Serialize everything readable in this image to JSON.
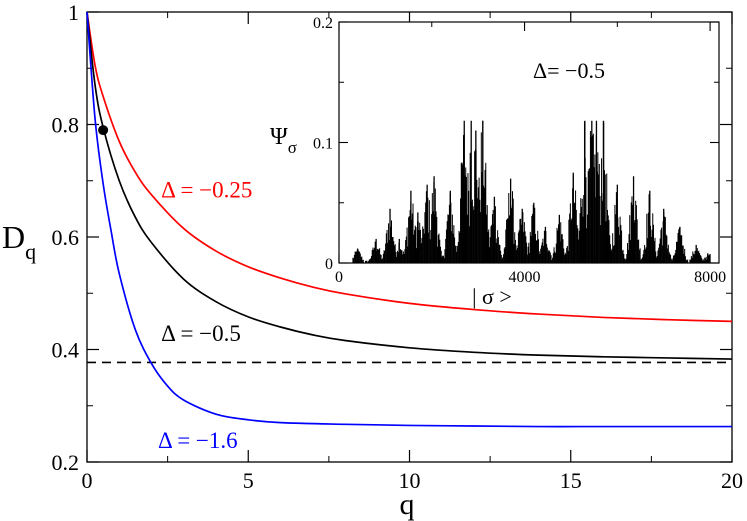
{
  "chart_data": [
    {
      "type": "line",
      "title": "",
      "xlabel": "q",
      "ylabel_main": "D",
      "ylabel_sub": "q",
      "xlim": [
        0,
        20
      ],
      "ylim": [
        0.2,
        1.0
      ],
      "xticks": [
        0,
        5,
        10,
        15,
        20
      ],
      "xtick_labels": [
        "0",
        "5",
        "10",
        "15",
        "20"
      ],
      "yticks": [
        0.2,
        0.4,
        0.6,
        0.8,
        1.0
      ],
      "ytick_labels": [
        "0.2",
        "0.4",
        "0.6",
        "0.8",
        "1"
      ],
      "series": [
        {
          "name": "Δ = −0.25",
          "color": "#ff0000",
          "x": [
            0,
            0.25,
            0.5,
            1,
            1.5,
            2,
            3,
            4,
            5,
            6,
            7,
            8,
            10,
            12,
            14,
            16,
            18,
            20
          ],
          "y": [
            1.0,
            0.905,
            0.85,
            0.77,
            0.715,
            0.675,
            0.615,
            0.575,
            0.547,
            0.527,
            0.511,
            0.499,
            0.482,
            0.471,
            0.463,
            0.457,
            0.453,
            0.45
          ]
        },
        {
          "name": "Δ = −0.5",
          "color": "#000000",
          "x": [
            0,
            0.25,
            0.5,
            1,
            1.5,
            2,
            3,
            4,
            5,
            6,
            7,
            8,
            10,
            12,
            14,
            16,
            18,
            20
          ],
          "y": [
            1.0,
            0.87,
            0.795,
            0.7,
            0.635,
            0.59,
            0.525,
            0.485,
            0.458,
            0.44,
            0.426,
            0.416,
            0.403,
            0.395,
            0.39,
            0.387,
            0.385,
            0.383
          ]
        },
        {
          "name": "Δ = −1.6",
          "color": "#0000ff",
          "x": [
            0,
            0.25,
            0.5,
            0.75,
            1,
            1.5,
            2,
            2.5,
            3,
            4,
            5,
            6,
            8,
            10,
            12,
            14,
            16,
            18,
            20
          ],
          "y": [
            1.0,
            0.81,
            0.695,
            0.61,
            0.535,
            0.435,
            0.375,
            0.335,
            0.31,
            0.285,
            0.275,
            0.27,
            0.267,
            0.265,
            0.264,
            0.263,
            0.263,
            0.263,
            0.263
          ]
        }
      ],
      "reference_line": {
        "style": "dashed",
        "color": "#000000",
        "y": 0.377
      },
      "marker_point": {
        "x": 0.5,
        "y": 0.79,
        "color": "#000000"
      },
      "annotations": [
        {
          "text": "Δ = −0.25",
          "color": "#ff0000",
          "x": 2.3,
          "y": 0.67
        },
        {
          "text": "Δ = −0.5",
          "color": "#000000",
          "x": 2.3,
          "y": 0.415
        },
        {
          "text": "Δ = −1.6",
          "color": "#0000ff",
          "x": 2.2,
          "y": 0.225
        }
      ]
    },
    {
      "type": "bar",
      "title": "",
      "inset": true,
      "xlabel": "| σ >",
      "ylabel_main": "Ψ",
      "ylabel_sub": "σ",
      "annotation": "Δ= −0.5",
      "xlim": [
        0,
        8192
      ],
      "ylim": [
        0,
        0.2
      ],
      "xticks": [
        0,
        4000,
        8000
      ],
      "xtick_labels": [
        "0",
        "4000",
        "8000"
      ],
      "yticks": [
        0,
        0.1,
        0.2
      ],
      "ytick_labels": [
        "0",
        "0.1",
        "0.2"
      ],
      "color": "#000000",
      "note": "spike envelope: positions and peak heights of the main cluster peaks",
      "peaks": [
        {
          "x": 400,
          "y": 0.012
        },
        {
          "x": 800,
          "y": 0.02
        },
        {
          "x": 1100,
          "y": 0.045
        },
        {
          "x": 1300,
          "y": 0.02
        },
        {
          "x": 1550,
          "y": 0.06
        },
        {
          "x": 1700,
          "y": 0.042
        },
        {
          "x": 1900,
          "y": 0.065
        },
        {
          "x": 2050,
          "y": 0.072
        },
        {
          "x": 2400,
          "y": 0.06
        },
        {
          "x": 2700,
          "y": 0.118
        },
        {
          "x": 2850,
          "y": 0.118
        },
        {
          "x": 2950,
          "y": 0.11
        },
        {
          "x": 3100,
          "y": 0.118
        },
        {
          "x": 3350,
          "y": 0.055
        },
        {
          "x": 3700,
          "y": 0.07
        },
        {
          "x": 3950,
          "y": 0.045
        },
        {
          "x": 4200,
          "y": 0.05
        },
        {
          "x": 4450,
          "y": 0.03
        },
        {
          "x": 4750,
          "y": 0.04
        },
        {
          "x": 5050,
          "y": 0.075
        },
        {
          "x": 5300,
          "y": 0.118
        },
        {
          "x": 5450,
          "y": 0.118
        },
        {
          "x": 5550,
          "y": 0.118
        },
        {
          "x": 5700,
          "y": 0.118
        },
        {
          "x": 6000,
          "y": 0.065
        },
        {
          "x": 6350,
          "y": 0.072
        },
        {
          "x": 6700,
          "y": 0.06
        },
        {
          "x": 7000,
          "y": 0.045
        },
        {
          "x": 7350,
          "y": 0.03
        },
        {
          "x": 7700,
          "y": 0.015
        },
        {
          "x": 7950,
          "y": 0.008
        }
      ]
    }
  ]
}
